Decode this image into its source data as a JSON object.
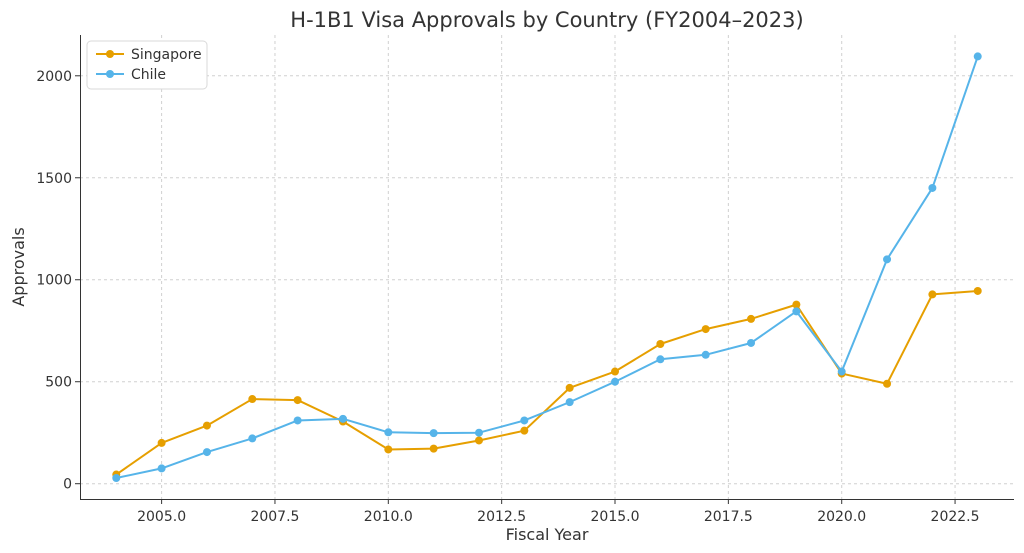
{
  "chart_data": {
    "type": "line",
    "title": "H-1B1 Visa Approvals by Country (FY2004–2023)",
    "xlabel": "Fiscal Year",
    "ylabel": "Approvals",
    "x": [
      2004,
      2005,
      2006,
      2007,
      2008,
      2009,
      2010,
      2011,
      2012,
      2013,
      2014,
      2015,
      2016,
      2017,
      2018,
      2019,
      2020,
      2021,
      2022,
      2023
    ],
    "series": [
      {
        "name": "Singapore",
        "color": "#E69F00",
        "values": [
          45,
          200,
          285,
          415,
          410,
          305,
          168,
          172,
          212,
          260,
          470,
          550,
          685,
          758,
          808,
          878,
          540,
          490,
          928,
          945
        ]
      },
      {
        "name": "Chile",
        "color": "#56B4E9",
        "values": [
          28,
          75,
          155,
          222,
          310,
          318,
          252,
          248,
          250,
          310,
          400,
          500,
          610,
          632,
          690,
          845,
          550,
          1100,
          1450,
          2095
        ]
      }
    ],
    "xlim": [
      2003.2,
      2023.8
    ],
    "ylim": [
      -75,
      2200
    ],
    "xticks": [
      2005.0,
      2007.5,
      2010.0,
      2012.5,
      2015.0,
      2017.5,
      2020.0,
      2022.5
    ],
    "xtick_labels": [
      "2005.0",
      "2007.5",
      "2010.0",
      "2012.5",
      "2015.0",
      "2017.5",
      "2020.0",
      "2022.5"
    ],
    "yticks": [
      0,
      500,
      1000,
      1500,
      2000
    ],
    "ytick_labels": [
      "0",
      "500",
      "1000",
      "1500",
      "2000"
    ],
    "grid": true,
    "legend_position": "top-left"
  }
}
